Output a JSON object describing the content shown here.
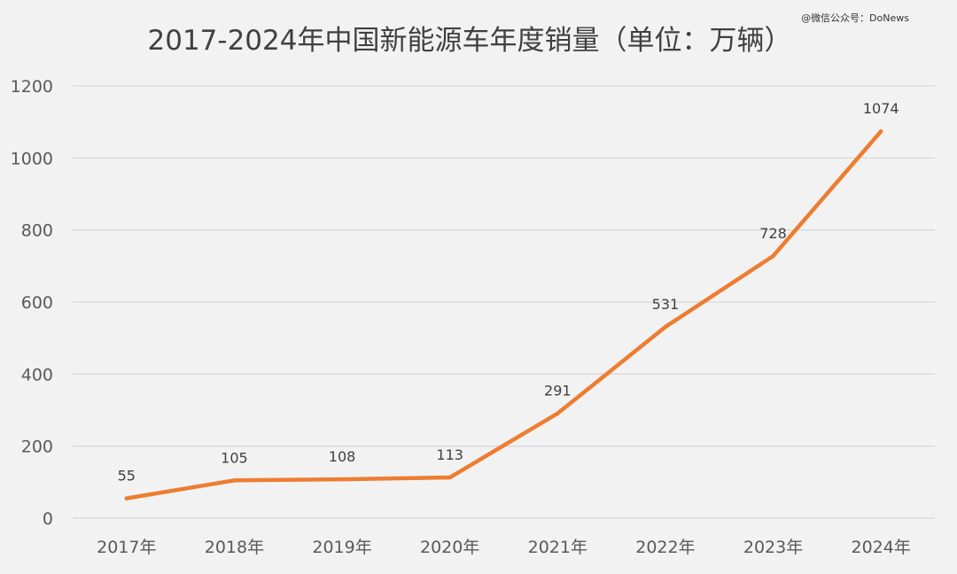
{
  "watermark": "@微信公众号：DoNews",
  "chart_data": {
    "type": "line",
    "title": "2017-2024年中国新能源车年度销量（单位：万辆）",
    "xlabel": "",
    "ylabel": "",
    "categories": [
      "2017年",
      "2018年",
      "2019年",
      "2020年",
      "2021年",
      "2022年",
      "2023年",
      "2024年"
    ],
    "series": [
      {
        "values": [
          55,
          105,
          108,
          113,
          291,
          531,
          728,
          1074
        ]
      }
    ],
    "ylim": [
      0,
      1200
    ],
    "yticks": [
      0,
      200,
      400,
      600,
      800,
      1000,
      1200
    ],
    "grid": true,
    "legend": "none",
    "data_labels": true,
    "colors": {
      "line": "#ed7d31",
      "grid": "#d9d9d9",
      "text": "#595959",
      "title": "#404040",
      "background": "#f2f2f2"
    }
  }
}
